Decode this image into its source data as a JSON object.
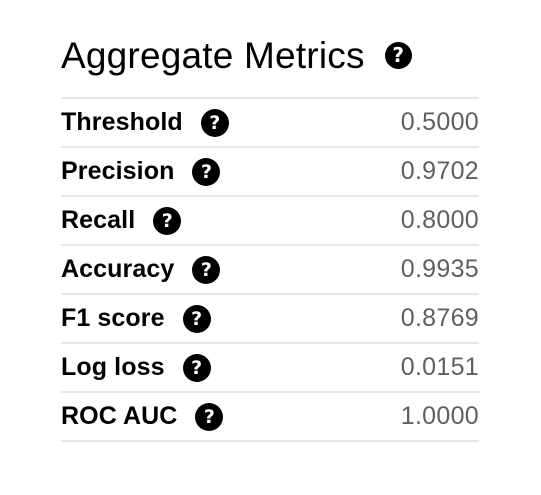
{
  "panel": {
    "title": "Aggregate Metrics",
    "help_glyph": "?",
    "help_icon": "question-circle-icon"
  },
  "metrics": [
    {
      "label": "Threshold",
      "value": "0.5000"
    },
    {
      "label": "Precision",
      "value": "0.9702"
    },
    {
      "label": "Recall",
      "value": "0.8000"
    },
    {
      "label": "Accuracy",
      "value": "0.9935"
    },
    {
      "label": "F1 score",
      "value": "0.8769"
    },
    {
      "label": "Log loss",
      "value": "0.0151"
    },
    {
      "label": "ROC AUC",
      "value": "1.0000"
    }
  ],
  "colors": {
    "text": "#000000",
    "value": "#5f5f5f",
    "divider": "#e6e6e6",
    "help_bg": "#000000",
    "help_fg": "#ffffff"
  }
}
